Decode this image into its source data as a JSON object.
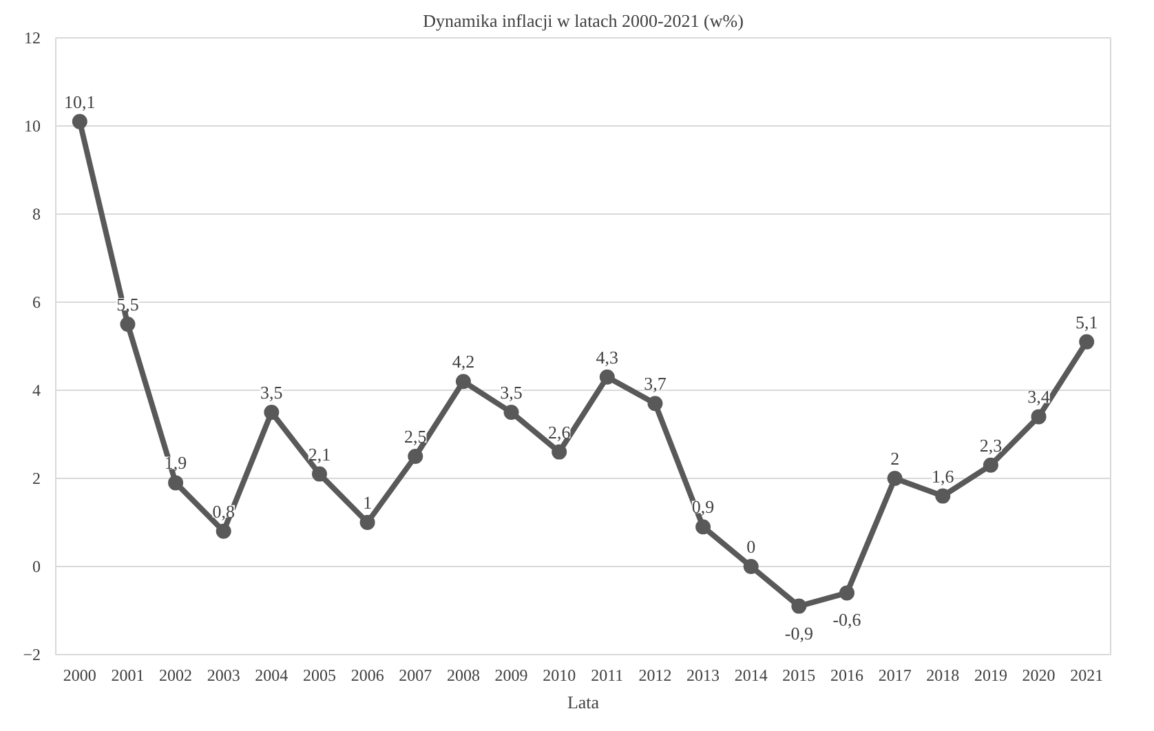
{
  "chart_data": {
    "type": "line",
    "title": "Dynamika inflacji w latach 2000-2021 (w%)",
    "xlabel": "Lata",
    "categories": [
      "2000",
      "2001",
      "2002",
      "2003",
      "2004",
      "2005",
      "2006",
      "2007",
      "2008",
      "2009",
      "2010",
      "2011",
      "2012",
      "2013",
      "2014",
      "2015",
      "2016",
      "2017",
      "2018",
      "2019",
      "2020",
      "2021"
    ],
    "series": [
      {
        "color": "#595959",
        "values": [
          10.1,
          5.5,
          1.9,
          0.8,
          3.5,
          2.1,
          1,
          2.5,
          4.2,
          3.5,
          2.6,
          4.3,
          3.7,
          0.9,
          0,
          -0.9,
          -0.6,
          2,
          1.6,
          2.3,
          3.4,
          5.1
        ],
        "value_labels": [
          "10,1",
          "5,5",
          "1,9",
          "0,8",
          "3,5",
          "2,1",
          "1",
          "2,5",
          "4,2",
          "3,5",
          "2,6",
          "4,3",
          "3,7",
          "0,9",
          "0",
          "-0,9",
          "-0,6",
          "2",
          "1,6",
          "2,3",
          "3,4",
          "5,1"
        ]
      }
    ],
    "ylim": [
      -2,
      12
    ],
    "yticks": [
      -2,
      0,
      2,
      4,
      6,
      8,
      10,
      12
    ],
    "grid": "y",
    "marker": "circle",
    "line_style": "solid"
  }
}
